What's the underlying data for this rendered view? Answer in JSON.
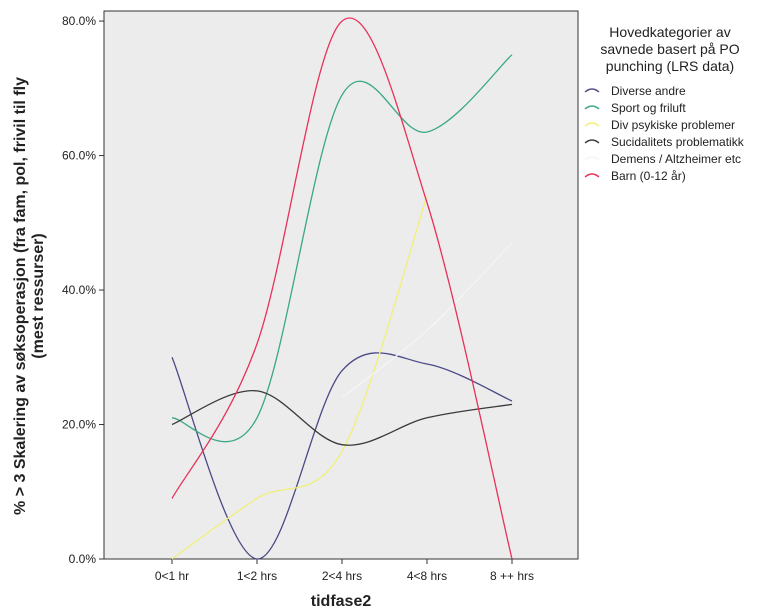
{
  "chart_data": {
    "type": "line",
    "xlabel": "tidfase2",
    "ylabel": [
      "% > 3 Skalering av søksoperasjon (fra fam, pol, frivil til fly",
      "(mest ressurser)"
    ],
    "categories": [
      "0<1 hr",
      "1<2 hrs",
      "2<4 hrs",
      "4<8 hrs",
      "8 ++ hrs"
    ],
    "ylim": [
      0,
      81.5
    ],
    "yticks": [
      0,
      20,
      40,
      60,
      80
    ],
    "ytick_labels": [
      "0.0%",
      "20.0%",
      "40.0%",
      "60.0%",
      "80.0%"
    ],
    "grid": false,
    "legend": {
      "position": "right",
      "title": [
        "Hovedkategorier av",
        "savnede basert på PO",
        "punching (LRS data)"
      ]
    },
    "series": [
      {
        "name": "Diverse andre",
        "color": "#4a4a86",
        "values": [
          30,
          0,
          28,
          29,
          23.5
        ]
      },
      {
        "name": "Sport og friluft",
        "color": "#3aa884",
        "values": [
          21,
          21,
          69,
          63.5,
          75
        ]
      },
      {
        "name": "Div psykiske problemer",
        "color": "#f0f07a",
        "values": [
          0,
          9,
          16,
          54,
          null
        ]
      },
      {
        "name": "Sucidalitets problematikk",
        "color": "#3a3a3a",
        "values": [
          20,
          25,
          17,
          21,
          23
        ]
      },
      {
        "name": "Demens / Altzheimer etc",
        "color": "#f5f5f5",
        "values": [
          null,
          null,
          24,
          34,
          47
        ]
      },
      {
        "name": "Barn (0-12 år)",
        "color": "#e8305a",
        "values": [
          9,
          32,
          80,
          53,
          0
        ]
      }
    ]
  }
}
